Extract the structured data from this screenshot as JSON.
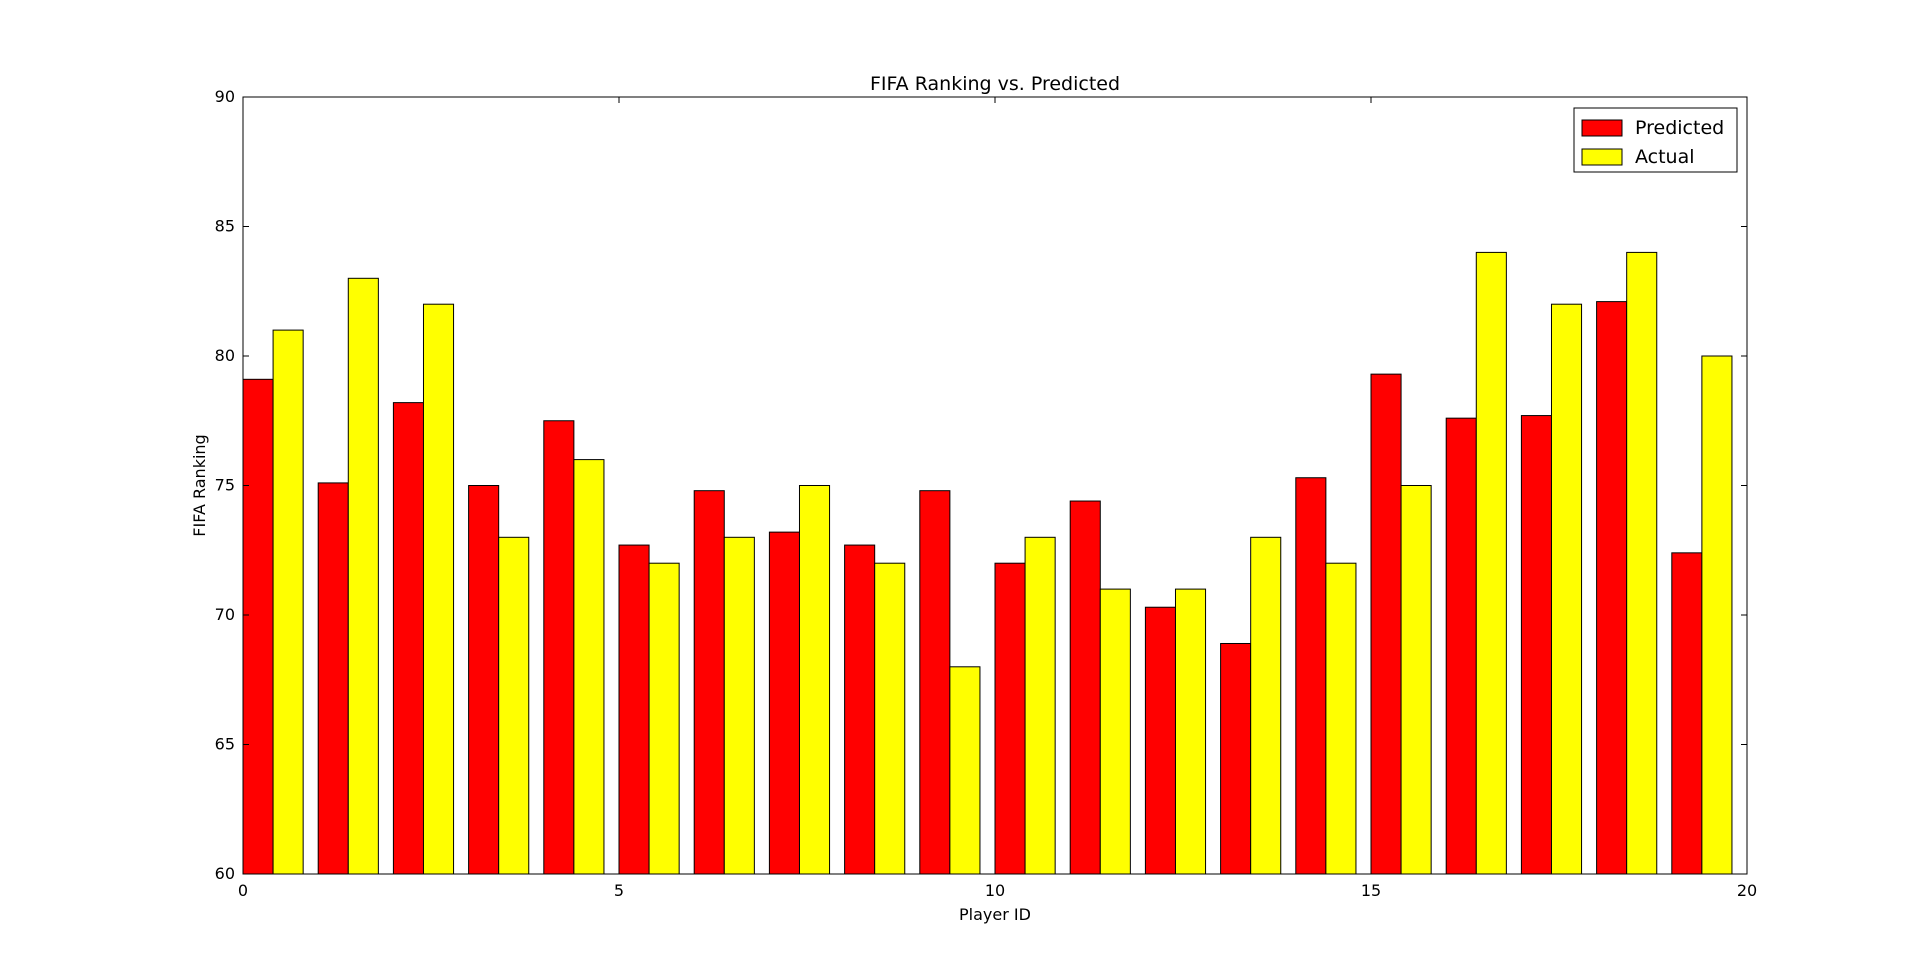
{
  "chart_data": {
    "type": "bar",
    "title": "FIFA Ranking vs. Predicted",
    "xlabel": "Player ID",
    "ylabel": "FIFA Ranking",
    "xlim": [
      0,
      20
    ],
    "ylim": [
      60,
      90
    ],
    "xticks": [
      0,
      5,
      10,
      15,
      20
    ],
    "yticks": [
      60,
      65,
      70,
      75,
      80,
      85,
      90
    ],
    "bar_width": 0.4,
    "legend_position": "top-right",
    "x": [
      0,
      1,
      2,
      3,
      4,
      5,
      6,
      7,
      8,
      9,
      10,
      11,
      12,
      13,
      14,
      15,
      16,
      17,
      18,
      19
    ],
    "series": [
      {
        "name": "Predicted",
        "color": "#ff0000",
        "offset": 0.0,
        "values": [
          79.1,
          75.1,
          78.2,
          75.0,
          77.5,
          72.7,
          74.8,
          73.2,
          72.7,
          74.8,
          72.0,
          74.4,
          70.3,
          68.9,
          75.3,
          79.3,
          77.6,
          77.7,
          82.1,
          72.4
        ]
      },
      {
        "name": "Actual",
        "color": "#ffff00",
        "offset": 0.4,
        "values": [
          81,
          83,
          82,
          73,
          76,
          72,
          73,
          75,
          72,
          68,
          73,
          71,
          71,
          73,
          72,
          75,
          84,
          82,
          84,
          80
        ]
      }
    ]
  }
}
